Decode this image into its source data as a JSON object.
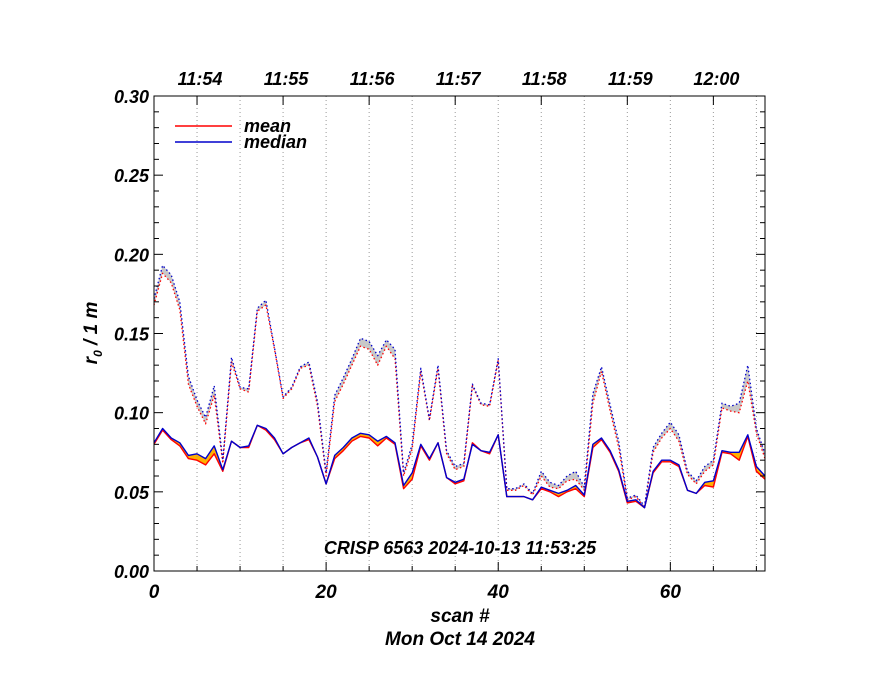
{
  "chart_data": {
    "type": "line",
    "title": "",
    "annotation": "CRISP 6563 2024-10-13 11:53:25",
    "xlabel": "scan #",
    "date_label": "Mon Oct 14 2024",
    "ylabel_main": "r",
    "ylabel_sub": "0",
    "ylabel_rest": " / 1 m",
    "xlim": [
      0,
      71
    ],
    "ylim": [
      0.0,
      0.3
    ],
    "x_ticks": [
      "0",
      "20",
      "40",
      "60"
    ],
    "x_tick_values": [
      0,
      20,
      40,
      60
    ],
    "y_ticks": [
      "0.00",
      "0.05",
      "0.10",
      "0.15",
      "0.20",
      "0.25",
      "0.30"
    ],
    "y_tick_values": [
      0.0,
      0.05,
      0.1,
      0.15,
      0.2,
      0.25,
      0.3
    ],
    "time_ticks": [
      "11:54",
      "11:55",
      "11:56",
      "11:57",
      "11:58",
      "11:59",
      "12:00"
    ],
    "time_tick_x": [
      5,
      15,
      25,
      35,
      45,
      55,
      65
    ],
    "time_gridlines_x": [
      5,
      10,
      15,
      20,
      25,
      30,
      35,
      40,
      45,
      50,
      55,
      60,
      65,
      70
    ],
    "legend": [
      {
        "label": "mean",
        "color": "#ff0000"
      },
      {
        "label": "median",
        "color": "#0000cc"
      }
    ],
    "legend_position": "top-left",
    "colors": {
      "mean": "#ff0000",
      "median": "#0000cc",
      "band_low": "#ffb000",
      "band_high": "#c8c8c8"
    },
    "series": [
      {
        "name": "mean",
        "style": "solid",
        "values": [
          0.08,
          0.089,
          0.083,
          0.079,
          0.071,
          0.07,
          0.067,
          0.074,
          0.063,
          0.082,
          0.078,
          0.078,
          0.092,
          0.089,
          0.083,
          0.074,
          0.078,
          0.081,
          0.083,
          0.072,
          0.055,
          0.071,
          0.076,
          0.082,
          0.085,
          0.084,
          0.079,
          0.084,
          0.08,
          0.052,
          0.058,
          0.079,
          0.07,
          0.081,
          0.059,
          0.055,
          0.057,
          0.081,
          0.076,
          0.074,
          0.086,
          0.047,
          0.047,
          0.047,
          0.045,
          0.052,
          0.05,
          0.047,
          0.05,
          0.052,
          0.047,
          0.078,
          0.083,
          0.075,
          0.063,
          0.043,
          0.044,
          0.04,
          0.062,
          0.069,
          0.069,
          0.066,
          0.051,
          0.049,
          0.054,
          0.053,
          0.075,
          0.074,
          0.07,
          0.085,
          0.063,
          0.058
        ]
      },
      {
        "name": "median",
        "style": "solid",
        "values": [
          0.081,
          0.09,
          0.084,
          0.081,
          0.073,
          0.074,
          0.071,
          0.079,
          0.064,
          0.082,
          0.078,
          0.079,
          0.092,
          0.09,
          0.084,
          0.074,
          0.078,
          0.081,
          0.084,
          0.072,
          0.055,
          0.073,
          0.078,
          0.084,
          0.087,
          0.086,
          0.082,
          0.085,
          0.081,
          0.054,
          0.062,
          0.08,
          0.071,
          0.081,
          0.059,
          0.056,
          0.058,
          0.08,
          0.076,
          0.075,
          0.086,
          0.047,
          0.047,
          0.047,
          0.045,
          0.053,
          0.051,
          0.049,
          0.051,
          0.054,
          0.048,
          0.08,
          0.084,
          0.076,
          0.064,
          0.044,
          0.045,
          0.04,
          0.063,
          0.07,
          0.07,
          0.067,
          0.051,
          0.049,
          0.056,
          0.057,
          0.076,
          0.075,
          0.075,
          0.086,
          0.066,
          0.06
        ]
      },
      {
        "name": "mean (dotted)",
        "style": "dotted",
        "values": [
          0.168,
          0.188,
          0.182,
          0.165,
          0.118,
          0.104,
          0.093,
          0.111,
          0.068,
          0.132,
          0.115,
          0.113,
          0.164,
          0.168,
          0.14,
          0.109,
          0.115,
          0.128,
          0.13,
          0.104,
          0.06,
          0.107,
          0.118,
          0.13,
          0.142,
          0.14,
          0.13,
          0.142,
          0.134,
          0.06,
          0.077,
          0.126,
          0.095,
          0.128,
          0.074,
          0.064,
          0.066,
          0.117,
          0.105,
          0.104,
          0.133,
          0.051,
          0.051,
          0.054,
          0.048,
          0.06,
          0.053,
          0.052,
          0.057,
          0.058,
          0.051,
          0.106,
          0.126,
          0.101,
          0.078,
          0.045,
          0.047,
          0.04,
          0.075,
          0.084,
          0.09,
          0.082,
          0.061,
          0.055,
          0.063,
          0.067,
          0.103,
          0.101,
          0.1,
          0.12,
          0.087,
          0.071
        ]
      },
      {
        "name": "median (dotted)",
        "style": "dotted",
        "values": [
          0.172,
          0.193,
          0.187,
          0.17,
          0.123,
          0.108,
          0.097,
          0.117,
          0.07,
          0.135,
          0.116,
          0.115,
          0.166,
          0.171,
          0.141,
          0.11,
          0.116,
          0.129,
          0.132,
          0.107,
          0.062,
          0.111,
          0.122,
          0.134,
          0.147,
          0.145,
          0.136,
          0.146,
          0.14,
          0.062,
          0.08,
          0.128,
          0.096,
          0.13,
          0.076,
          0.066,
          0.068,
          0.118,
          0.106,
          0.105,
          0.134,
          0.052,
          0.052,
          0.055,
          0.049,
          0.063,
          0.056,
          0.054,
          0.06,
          0.063,
          0.053,
          0.112,
          0.129,
          0.105,
          0.082,
          0.046,
          0.048,
          0.041,
          0.078,
          0.087,
          0.094,
          0.086,
          0.063,
          0.057,
          0.066,
          0.07,
          0.106,
          0.104,
          0.106,
          0.13,
          0.09,
          0.074
        ]
      }
    ]
  }
}
